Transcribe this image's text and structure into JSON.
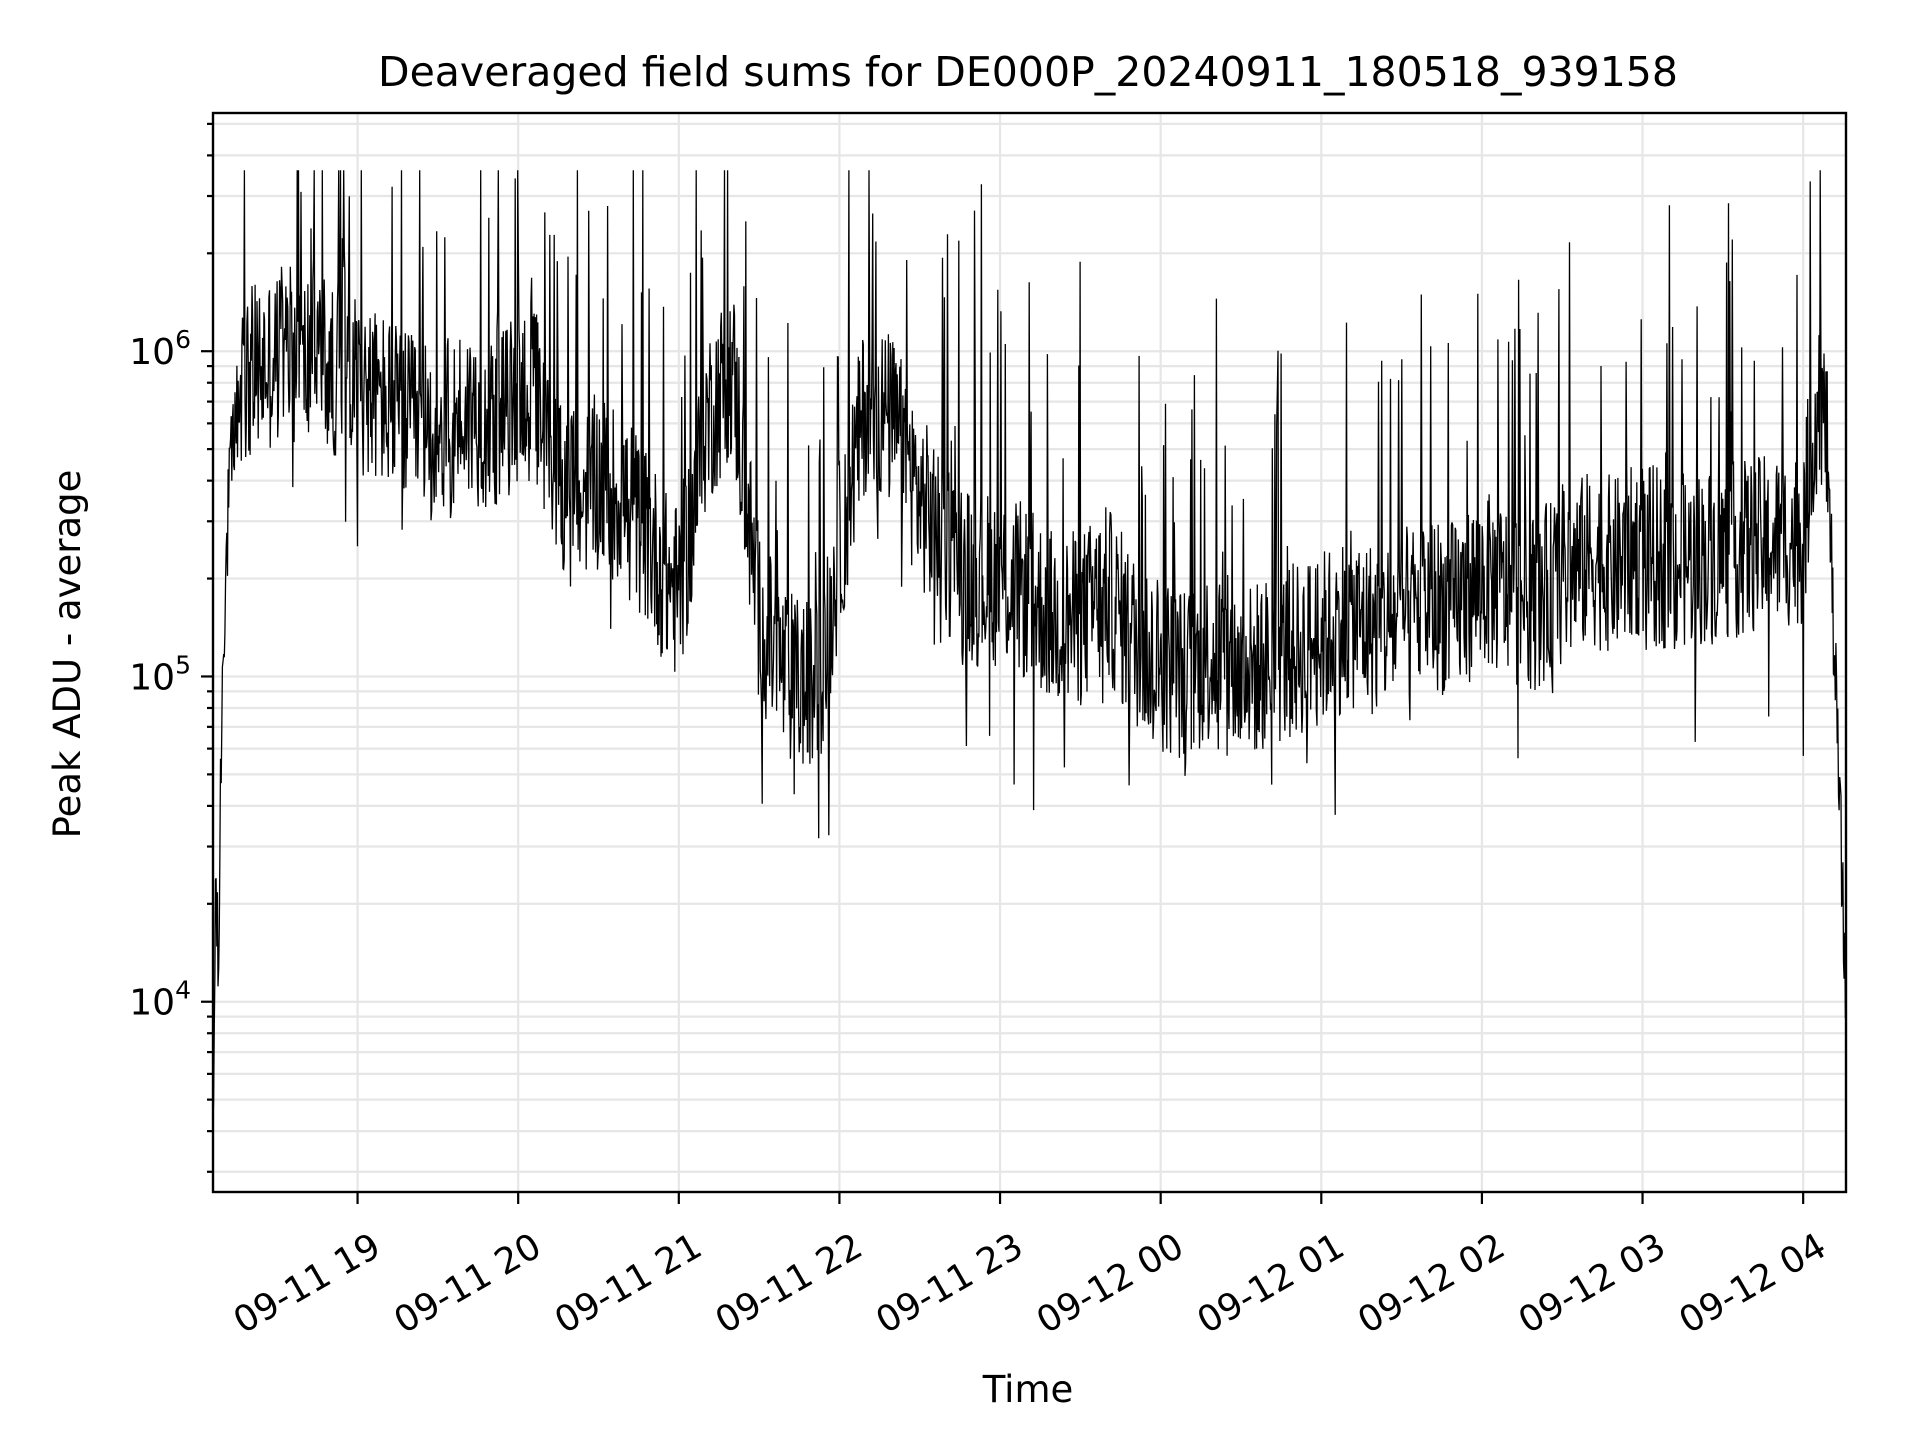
{
  "chart_data": {
    "type": "line",
    "title": "Deaveraged field sums for DE000P_20240911_180518_939158",
    "xlabel": "Time",
    "ylabel": "Peak ADU - average",
    "y_scale": "log",
    "ylim": [
      2600,
      5400000
    ],
    "xlim": [
      "2024-09-11 18:06",
      "2024-09-12 04:16"
    ],
    "grid": true,
    "x_ticks": [
      {
        "t": "2024-09-11 19:00",
        "label": "09-11 19"
      },
      {
        "t": "2024-09-11 20:00",
        "label": "09-11 20"
      },
      {
        "t": "2024-09-11 21:00",
        "label": "09-11 21"
      },
      {
        "t": "2024-09-11 22:00",
        "label": "09-11 22"
      },
      {
        "t": "2024-09-11 23:00",
        "label": "09-11 23"
      },
      {
        "t": "2024-09-12 00:00",
        "label": "09-12 00"
      },
      {
        "t": "2024-09-12 01:00",
        "label": "09-12 01"
      },
      {
        "t": "2024-09-12 02:00",
        "label": "09-12 02"
      },
      {
        "t": "2024-09-12 03:00",
        "label": "09-12 03"
      },
      {
        "t": "2024-09-12 04:00",
        "label": "09-12 04"
      }
    ],
    "y_ticks": [
      {
        "value": 10000,
        "base": "10",
        "exp": "4"
      },
      {
        "value": 100000,
        "base": "10",
        "exp": "5"
      },
      {
        "value": 1000000,
        "base": "10",
        "exp": "6"
      }
    ],
    "line_color": "#000000",
    "series": [
      {
        "x": [
          "2024-09-11 18:06",
          "2024-09-11 18:07",
          "2024-09-11 18:08",
          "2024-09-11 18:09",
          "2024-09-11 18:10",
          "2024-09-11 18:12",
          "2024-09-11 18:14",
          "2024-09-11 18:16",
          "2024-09-11 18:18",
          "2024-09-11 18:20",
          "2024-09-11 18:25",
          "2024-09-11 18:30",
          "2024-09-11 18:35",
          "2024-09-11 18:40",
          "2024-09-11 18:45",
          "2024-09-11 18:50",
          "2024-09-11 18:55",
          "2024-09-11 19:00",
          "2024-09-11 19:10",
          "2024-09-11 19:20",
          "2024-09-11 19:30",
          "2024-09-11 19:40",
          "2024-09-11 19:50",
          "2024-09-11 20:00",
          "2024-09-11 20:05",
          "2024-09-11 20:10",
          "2024-09-11 20:20",
          "2024-09-11 20:30",
          "2024-09-11 20:40",
          "2024-09-11 20:50",
          "2024-09-11 20:55",
          "2024-09-11 21:00",
          "2024-09-11 21:05",
          "2024-09-11 21:10",
          "2024-09-11 21:20",
          "2024-09-11 21:30",
          "2024-09-11 21:40",
          "2024-09-11 21:50",
          "2024-09-11 21:55",
          "2024-09-11 22:00",
          "2024-09-11 22:10",
          "2024-09-11 22:20",
          "2024-09-11 22:30",
          "2024-09-11 22:40",
          "2024-09-11 22:50",
          "2024-09-11 23:00",
          "2024-09-11 23:10",
          "2024-09-11 23:20",
          "2024-09-11 23:30",
          "2024-09-11 23:40",
          "2024-09-11 23:50",
          "2024-09-12 00:00",
          "2024-09-12 00:10",
          "2024-09-12 00:20",
          "2024-09-12 00:30",
          "2024-09-12 00:40",
          "2024-09-12 00:50",
          "2024-09-12 01:00",
          "2024-09-12 01:10",
          "2024-09-12 01:20",
          "2024-09-12 01:30",
          "2024-09-12 01:40",
          "2024-09-12 01:50",
          "2024-09-12 02:00",
          "2024-09-12 02:10",
          "2024-09-12 02:20",
          "2024-09-12 02:30",
          "2024-09-12 02:40",
          "2024-09-12 02:50",
          "2024-09-12 03:00",
          "2024-09-12 03:10",
          "2024-09-12 03:20",
          "2024-09-12 03:30",
          "2024-09-12 03:40",
          "2024-09-12 03:50",
          "2024-09-12 04:00",
          "2024-09-12 04:03",
          "2024-09-12 04:06",
          "2024-09-12 04:09",
          "2024-09-12 04:12",
          "2024-09-12 04:16"
        ],
        "y": [
          3000,
          25000,
          11000,
          60000,
          150000,
          350000,
          600000,
          700000,
          800000,
          850000,
          900000,
          950000,
          1000000,
          900000,
          1100000,
          800000,
          1100000,
          800000,
          700000,
          600000,
          550000,
          650000,
          600000,
          700000,
          900000,
          500000,
          350000,
          400000,
          350000,
          250000,
          200000,
          180000,
          300000,
          600000,
          900000,
          150000,
          100000,
          90000,
          120000,
          250000,
          700000,
          600000,
          350000,
          250000,
          200000,
          200000,
          180000,
          150000,
          150000,
          180000,
          130000,
          110000,
          100000,
          120000,
          100000,
          110000,
          120000,
          130000,
          150000,
          140000,
          150000,
          170000,
          160000,
          200000,
          180000,
          170000,
          200000,
          230000,
          220000,
          250000,
          220000,
          230000,
          240000,
          250000,
          260000,
          270000,
          500000,
          800000,
          500000,
          100000,
          10000
        ],
        "noise": "dense high-frequency spikes between roughly 4e4 and 3.6e6"
      }
    ]
  }
}
